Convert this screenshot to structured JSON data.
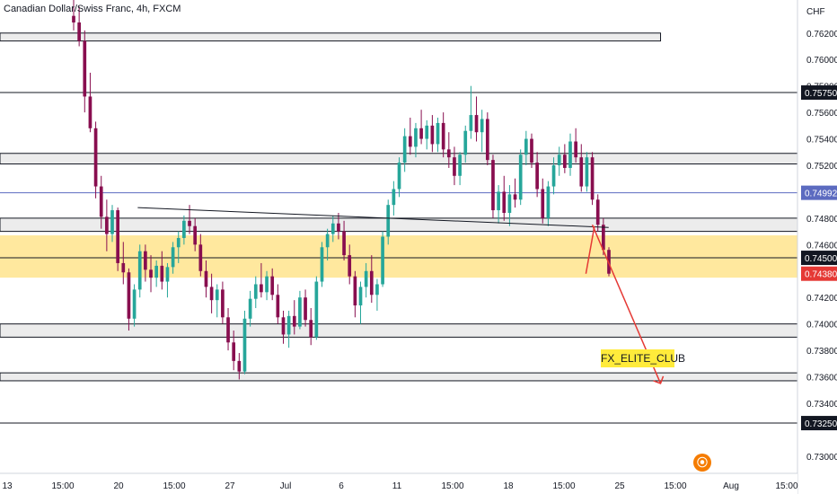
{
  "header": {
    "title": "Canadian Dollar/Swiss Franc, 4h, FXCM",
    "currency": "CHF"
  },
  "annotation": {
    "signature": "FX_ELITE_CLUB"
  },
  "logo": {
    "icon": "tradingview-logo-icon",
    "glyph": "⦿"
  },
  "colors": {
    "bull": "#26a69a",
    "bear": "#880e4f",
    "zone": "#ffd54f",
    "arrow": "#e53935",
    "line_blue": "#5c6bc0",
    "badge_red": "#e53935"
  },
  "chart_data": {
    "type": "candlestick",
    "title": "Canadian Dollar/Swiss Franc, 4h, FXCM",
    "ylabel": "CHF",
    "ylim": [
      0.7287,
      0.7645
    ],
    "y_ticks": [
      "0.76200",
      "0.76000",
      "0.75800",
      "0.75600",
      "0.75400",
      "0.75200",
      "0.74800",
      "0.74600",
      "0.74200",
      "0.74000",
      "0.73800",
      "0.73600",
      "0.73400",
      "0.73000"
    ],
    "x_ticks": [
      "13",
      "15:00",
      "20",
      "15:00",
      "27",
      "Jul",
      "6",
      "11",
      "15:00",
      "18",
      "15:00",
      "25",
      "15:00",
      "Aug",
      "15:00"
    ],
    "price_labels": [
      {
        "label": "0.75750",
        "value": 0.7575,
        "style": "black"
      },
      {
        "label": "0.74992",
        "value": 0.74992,
        "style": "blue"
      },
      {
        "label": "0.74500",
        "value": 0.745,
        "style": "black"
      },
      {
        "label": "0.74380",
        "value": 0.7438,
        "style": "red"
      },
      {
        "label": "0.73250",
        "value": 0.7325,
        "style": "black"
      }
    ],
    "horizontal_lines": [
      {
        "value": 0.7575,
        "color": "black"
      },
      {
        "value": 0.74992,
        "color": "blue"
      },
      {
        "value": 0.745,
        "color": "black"
      },
      {
        "value": 0.7325,
        "color": "black"
      }
    ],
    "zones": [
      {
        "from": 0.7614,
        "to": 0.762,
        "x_end_fraction": 0.8283
      },
      {
        "from": 0.7521,
        "to": 0.7529,
        "x_end_fraction": 1
      },
      {
        "from": 0.747,
        "to": 0.748,
        "x_end_fraction": 1
      },
      {
        "from": 0.7435,
        "to": 0.7467,
        "x_end_fraction": 1,
        "highlight": true
      },
      {
        "from": 0.739,
        "to": 0.74,
        "x_end_fraction": 1
      },
      {
        "from": 0.7357,
        "to": 0.7363,
        "x_end_fraction": 1
      }
    ],
    "trendline": {
      "start": [
        0.1727,
        0.7488
      ],
      "end": [
        0.7632,
        0.7473
      ]
    },
    "arrow_path": [
      [
        0.7427,
        0.7475
      ],
      [
        0.8283,
        0.7355
      ]
    ],
    "arrow_up": [
      [
        0.7347,
        0.7438
      ],
      [
        0.7454,
        0.7474
      ]
    ],
    "candles": [
      [
        0.7633,
        0.7652,
        0.7622,
        0.7628
      ],
      [
        0.7628,
        0.764,
        0.761,
        0.7614
      ],
      [
        0.7614,
        0.7622,
        0.756,
        0.7572
      ],
      [
        0.7572,
        0.759,
        0.7545,
        0.7548
      ],
      [
        0.7548,
        0.7553,
        0.7495,
        0.7504
      ],
      [
        0.7504,
        0.7512,
        0.7472,
        0.7481
      ],
      [
        0.7481,
        0.7494,
        0.7455,
        0.7468
      ],
      [
        0.7468,
        0.749,
        0.7462,
        0.7486
      ],
      [
        0.7486,
        0.7488,
        0.744,
        0.7446
      ],
      [
        0.7446,
        0.7462,
        0.743,
        0.7439
      ],
      [
        0.7439,
        0.7442,
        0.7395,
        0.7404
      ],
      [
        0.7404,
        0.743,
        0.7398,
        0.7426
      ],
      [
        0.7426,
        0.746,
        0.742,
        0.7455
      ],
      [
        0.7455,
        0.746,
        0.7432,
        0.7441
      ],
      [
        0.7441,
        0.7452,
        0.7424,
        0.7435
      ],
      [
        0.7435,
        0.7448,
        0.7428,
        0.7444
      ],
      [
        0.7444,
        0.7455,
        0.7426,
        0.7432
      ],
      [
        0.7432,
        0.7446,
        0.742,
        0.7443
      ],
      [
        0.7443,
        0.7462,
        0.7438,
        0.7458
      ],
      [
        0.7458,
        0.747,
        0.7446,
        0.7465
      ],
      [
        0.7465,
        0.7482,
        0.746,
        0.7478
      ],
      [
        0.7478,
        0.749,
        0.7468,
        0.7474
      ],
      [
        0.7474,
        0.748,
        0.7455,
        0.746
      ],
      [
        0.746,
        0.7468,
        0.7436,
        0.744
      ],
      [
        0.744,
        0.7448,
        0.742,
        0.7428
      ],
      [
        0.7428,
        0.7438,
        0.7408,
        0.7418
      ],
      [
        0.7418,
        0.743,
        0.7405,
        0.7426
      ],
      [
        0.7426,
        0.7432,
        0.74,
        0.7405
      ],
      [
        0.7405,
        0.7412,
        0.738,
        0.7386
      ],
      [
        0.7386,
        0.7395,
        0.7365,
        0.7372
      ],
      [
        0.7372,
        0.7378,
        0.7358,
        0.7364
      ],
      [
        0.7364,
        0.741,
        0.7362,
        0.7404
      ],
      [
        0.7404,
        0.7425,
        0.7398,
        0.7419
      ],
      [
        0.7419,
        0.7436,
        0.7412,
        0.743
      ],
      [
        0.743,
        0.7446,
        0.742,
        0.7424
      ],
      [
        0.7424,
        0.744,
        0.7418,
        0.7436
      ],
      [
        0.7436,
        0.7442,
        0.7418,
        0.7422
      ],
      [
        0.7422,
        0.743,
        0.74,
        0.7405
      ],
      [
        0.7405,
        0.741,
        0.7385,
        0.7392
      ],
      [
        0.7392,
        0.741,
        0.7382,
        0.7406
      ],
      [
        0.7406,
        0.7418,
        0.7392,
        0.7398
      ],
      [
        0.7398,
        0.7425,
        0.7396,
        0.742
      ],
      [
        0.742,
        0.7426,
        0.7398,
        0.7403
      ],
      [
        0.7403,
        0.7412,
        0.7384,
        0.739
      ],
      [
        0.739,
        0.7436,
        0.7388,
        0.7432
      ],
      [
        0.7432,
        0.7462,
        0.7428,
        0.7458
      ],
      [
        0.7458,
        0.7472,
        0.7448,
        0.7468
      ],
      [
        0.7468,
        0.7482,
        0.7462,
        0.7476
      ],
      [
        0.7476,
        0.7484,
        0.7464,
        0.747
      ],
      [
        0.747,
        0.7478,
        0.7448,
        0.7452
      ],
      [
        0.7452,
        0.746,
        0.743,
        0.7436
      ],
      [
        0.7436,
        0.744,
        0.7405,
        0.7414
      ],
      [
        0.7414,
        0.7432,
        0.74,
        0.7428
      ],
      [
        0.7428,
        0.7446,
        0.742,
        0.744
      ],
      [
        0.744,
        0.7452,
        0.7416,
        0.7422
      ],
      [
        0.7422,
        0.7434,
        0.741,
        0.743
      ],
      [
        0.743,
        0.747,
        0.7428,
        0.7466
      ],
      [
        0.7466,
        0.7494,
        0.746,
        0.749
      ],
      [
        0.749,
        0.7508,
        0.7482,
        0.7502
      ],
      [
        0.7502,
        0.7526,
        0.7496,
        0.7522
      ],
      [
        0.7522,
        0.7548,
        0.7515,
        0.7542
      ],
      [
        0.7542,
        0.7556,
        0.7528,
        0.7534
      ],
      [
        0.7534,
        0.7552,
        0.7526,
        0.7548
      ],
      [
        0.7548,
        0.7562,
        0.7536,
        0.754
      ],
      [
        0.754,
        0.7554,
        0.7532,
        0.755
      ],
      [
        0.755,
        0.7558,
        0.753,
        0.7536
      ],
      [
        0.7536,
        0.7556,
        0.753,
        0.7552
      ],
      [
        0.7552,
        0.756,
        0.7526,
        0.7532
      ],
      [
        0.7532,
        0.7545,
        0.7518,
        0.7526
      ],
      [
        0.7526,
        0.7534,
        0.7505,
        0.7512
      ],
      [
        0.7512,
        0.753,
        0.7505,
        0.7528
      ],
      [
        0.7528,
        0.755,
        0.7522,
        0.7546
      ],
      [
        0.7546,
        0.758,
        0.754,
        0.7558
      ],
      [
        0.7558,
        0.7572,
        0.7538,
        0.7545
      ],
      [
        0.7545,
        0.7562,
        0.753,
        0.7555
      ],
      [
        0.7555,
        0.756,
        0.752,
        0.7524
      ],
      [
        0.7524,
        0.7528,
        0.748,
        0.7486
      ],
      [
        0.7486,
        0.7505,
        0.7476,
        0.75
      ],
      [
        0.75,
        0.7512,
        0.7478,
        0.7484
      ],
      [
        0.7484,
        0.7505,
        0.7474,
        0.7498
      ],
      [
        0.7498,
        0.751,
        0.7488,
        0.7494
      ],
      [
        0.7494,
        0.7532,
        0.749,
        0.7528
      ],
      [
        0.7528,
        0.7546,
        0.752,
        0.754
      ],
      [
        0.754,
        0.7544,
        0.7518,
        0.7522
      ],
      [
        0.7522,
        0.753,
        0.7496,
        0.7502
      ],
      [
        0.7502,
        0.751,
        0.7476,
        0.748
      ],
      [
        0.748,
        0.7508,
        0.7474,
        0.7504
      ],
      [
        0.7504,
        0.7526,
        0.7498,
        0.752
      ],
      [
        0.752,
        0.7534,
        0.7512,
        0.7528
      ],
      [
        0.7528,
        0.7536,
        0.7514,
        0.7518
      ],
      [
        0.7518,
        0.7544,
        0.7512,
        0.7538
      ],
      [
        0.7538,
        0.7548,
        0.7522,
        0.7526
      ],
      [
        0.7526,
        0.7536,
        0.75,
        0.7504
      ],
      [
        0.7504,
        0.753,
        0.75,
        0.7526
      ],
      [
        0.7526,
        0.753,
        0.749,
        0.7494
      ],
      [
        0.7494,
        0.7498,
        0.747,
        0.7475
      ],
      [
        0.7475,
        0.748,
        0.7452,
        0.7456
      ],
      [
        0.7456,
        0.7458,
        0.7436,
        0.7438
      ]
    ]
  }
}
